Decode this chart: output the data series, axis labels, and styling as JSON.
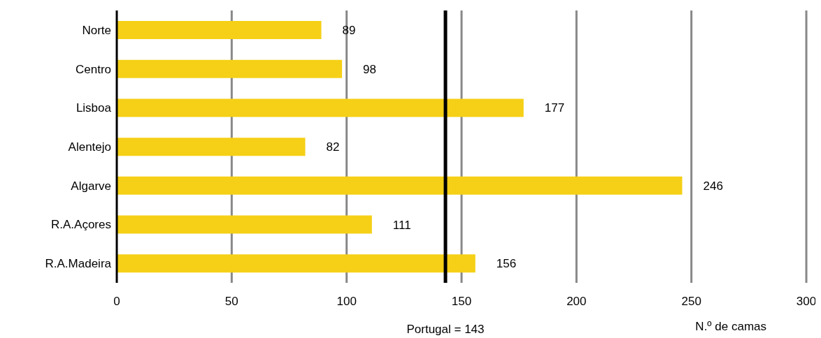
{
  "chart_data": {
    "type": "bar",
    "orientation": "horizontal",
    "categories": [
      "Norte",
      "Centro",
      "Lisboa",
      "Alentejo",
      "Algarve",
      "R.A.Açores",
      "R.A.Madeira"
    ],
    "values": [
      89,
      98,
      177,
      82,
      246,
      111,
      156
    ],
    "color": "#f5d016",
    "xlim": [
      0,
      300
    ],
    "xticks": [
      0,
      50,
      100,
      150,
      200,
      250,
      300
    ],
    "xlabel": "N.º de camas",
    "grid": "x",
    "data_labels": true,
    "ref_lines": [
      {
        "axis": "x",
        "value": 143,
        "label": "Portugal = 143",
        "color": "#000000"
      }
    ]
  }
}
